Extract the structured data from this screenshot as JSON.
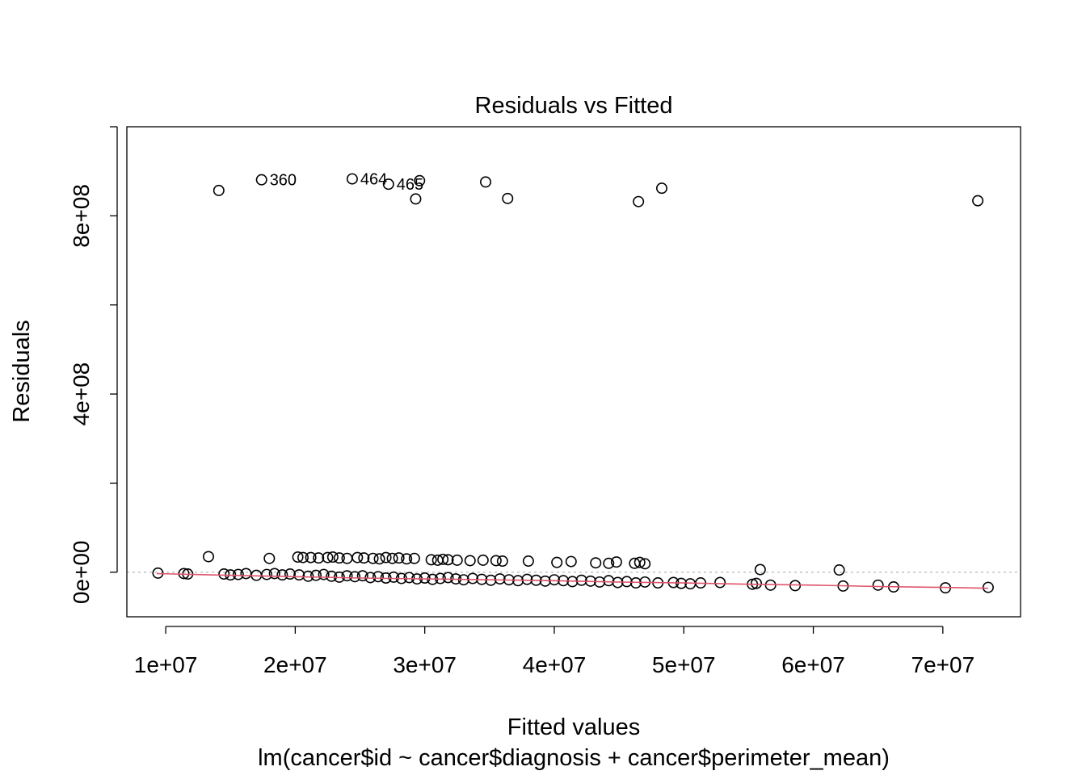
{
  "chart_data": {
    "type": "scatter",
    "title": "Residuals vs Fitted",
    "xlabel": "Fitted values",
    "subtitle": "lm(cancer$id ~ cancer$diagnosis + cancer$perimeter_mean)",
    "ylabel": "Residuals",
    "xlim": [
      7000000,
      76000000
    ],
    "ylim": [
      -100000000,
      1000000000
    ],
    "x_ticks": [
      {
        "value": 10000000,
        "label": "1e+07"
      },
      {
        "value": 20000000,
        "label": "2e+07"
      },
      {
        "value": 30000000,
        "label": "3e+07"
      },
      {
        "value": 40000000,
        "label": "4e+07"
      },
      {
        "value": 50000000,
        "label": "5e+07"
      },
      {
        "value": 60000000,
        "label": "6e+07"
      },
      {
        "value": 70000000,
        "label": "7e+07"
      }
    ],
    "y_ticks": [
      {
        "value": 0,
        "label": "0e+00"
      },
      {
        "value": 200000000,
        "label": ""
      },
      {
        "value": 400000000,
        "label": "4e+08"
      },
      {
        "value": 600000000,
        "label": ""
      },
      {
        "value": 800000000,
        "label": "8e+08"
      },
      {
        "value": 1000000000,
        "label": ""
      }
    ],
    "reference_line": {
      "y": 0,
      "style": "dotted",
      "color": "#bdbdbd"
    },
    "smooth_color": "#DF536B",
    "smooth_line": [
      [
        9300000,
        -3000000
      ],
      [
        15000000,
        -7000000
      ],
      [
        20000000,
        -10000000
      ],
      [
        25000000,
        -13000000
      ],
      [
        30000000,
        -15000000
      ],
      [
        35000000,
        -17000000
      ],
      [
        40000000,
        -19000000
      ],
      [
        45000000,
        -22000000
      ],
      [
        50000000,
        -24000000
      ],
      [
        55000000,
        -27000000
      ],
      [
        60000000,
        -29000000
      ],
      [
        65000000,
        -32000000
      ],
      [
        70000000,
        -34000000
      ],
      [
        73500000,
        -36000000
      ]
    ],
    "points": [
      [
        14100000,
        857000000
      ],
      [
        17400000,
        881000000
      ],
      [
        24400000,
        883000000
      ],
      [
        27200000,
        871000000
      ],
      [
        29600000,
        879000000
      ],
      [
        29300000,
        838000000
      ],
      [
        34700000,
        876000000
      ],
      [
        36400000,
        839000000
      ],
      [
        46500000,
        832000000
      ],
      [
        48300000,
        862000000
      ],
      [
        72700000,
        834000000
      ],
      [
        13300000,
        35000000
      ],
      [
        18000000,
        31000000
      ],
      [
        20200000,
        34000000
      ],
      [
        20600000,
        33000000
      ],
      [
        21200000,
        33000000
      ],
      [
        21800000,
        32000000
      ],
      [
        22500000,
        33000000
      ],
      [
        22900000,
        34000000
      ],
      [
        23400000,
        32000000
      ],
      [
        24000000,
        31000000
      ],
      [
        24800000,
        33000000
      ],
      [
        25300000,
        32000000
      ],
      [
        26000000,
        31000000
      ],
      [
        26500000,
        30000000
      ],
      [
        27000000,
        33000000
      ],
      [
        27500000,
        31000000
      ],
      [
        28000000,
        32000000
      ],
      [
        28600000,
        30000000
      ],
      [
        29200000,
        31000000
      ],
      [
        30500000,
        28000000
      ],
      [
        31000000,
        27000000
      ],
      [
        31400000,
        29000000
      ],
      [
        31800000,
        28000000
      ],
      [
        32500000,
        27000000
      ],
      [
        33500000,
        26000000
      ],
      [
        34500000,
        27000000
      ],
      [
        35500000,
        26000000
      ],
      [
        36000000,
        25000000
      ],
      [
        38000000,
        25000000
      ],
      [
        40200000,
        22000000
      ],
      [
        41300000,
        24000000
      ],
      [
        43200000,
        21000000
      ],
      [
        44200000,
        20000000
      ],
      [
        44800000,
        23000000
      ],
      [
        46200000,
        20000000
      ],
      [
        46600000,
        22000000
      ],
      [
        47000000,
        19000000
      ],
      [
        55900000,
        6000000
      ],
      [
        62000000,
        5000000
      ],
      [
        9400000,
        -2000000
      ],
      [
        11400000,
        -3000000
      ],
      [
        11700000,
        -4000000
      ],
      [
        14500000,
        -4000000
      ],
      [
        15000000,
        -6000000
      ],
      [
        15600000,
        -5000000
      ],
      [
        16200000,
        -3000000
      ],
      [
        17000000,
        -7000000
      ],
      [
        17800000,
        -5000000
      ],
      [
        18400000,
        -3000000
      ],
      [
        19000000,
        -6000000
      ],
      [
        19600000,
        -4000000
      ],
      [
        20300000,
        -6000000
      ],
      [
        21000000,
        -9000000
      ],
      [
        21600000,
        -7000000
      ],
      [
        22200000,
        -5000000
      ],
      [
        22800000,
        -9000000
      ],
      [
        23400000,
        -11000000
      ],
      [
        24000000,
        -8000000
      ],
      [
        24600000,
        -10000000
      ],
      [
        25200000,
        -8000000
      ],
      [
        25800000,
        -12000000
      ],
      [
        26400000,
        -10000000
      ],
      [
        27000000,
        -13000000
      ],
      [
        27600000,
        -11000000
      ],
      [
        28200000,
        -14000000
      ],
      [
        28800000,
        -12000000
      ],
      [
        29400000,
        -15000000
      ],
      [
        30000000,
        -13000000
      ],
      [
        30600000,
        -16000000
      ],
      [
        31200000,
        -14000000
      ],
      [
        31800000,
        -12000000
      ],
      [
        32400000,
        -15000000
      ],
      [
        33000000,
        -17000000
      ],
      [
        33700000,
        -14000000
      ],
      [
        34400000,
        -16000000
      ],
      [
        35100000,
        -18000000
      ],
      [
        35800000,
        -15000000
      ],
      [
        36500000,
        -17000000
      ],
      [
        37200000,
        -19000000
      ],
      [
        37900000,
        -16000000
      ],
      [
        38600000,
        -18000000
      ],
      [
        39300000,
        -20000000
      ],
      [
        40000000,
        -17000000
      ],
      [
        40700000,
        -19000000
      ],
      [
        41400000,
        -21000000
      ],
      [
        42100000,
        -18000000
      ],
      [
        42800000,
        -20000000
      ],
      [
        43500000,
        -22000000
      ],
      [
        44200000,
        -19000000
      ],
      [
        44900000,
        -23000000
      ],
      [
        45600000,
        -21000000
      ],
      [
        46300000,
        -24000000
      ],
      [
        47000000,
        -22000000
      ],
      [
        48000000,
        -24000000
      ],
      [
        49200000,
        -23000000
      ],
      [
        49800000,
        -25000000
      ],
      [
        50500000,
        -26000000
      ],
      [
        51300000,
        -24000000
      ],
      [
        52800000,
        -23000000
      ],
      [
        55300000,
        -27000000
      ],
      [
        55600000,
        -25000000
      ],
      [
        56700000,
        -29000000
      ],
      [
        58600000,
        -30000000
      ],
      [
        62300000,
        -31000000
      ],
      [
        65000000,
        -29000000
      ],
      [
        66200000,
        -33000000
      ],
      [
        70200000,
        -35000000
      ],
      [
        73500000,
        -34000000
      ]
    ],
    "labeled_points": [
      {
        "label": "360",
        "x": 17400000,
        "y": 881000000
      },
      {
        "label": "464",
        "x": 24400000,
        "y": 883000000
      },
      {
        "label": "465",
        "x": 27200000,
        "y": 871000000
      }
    ]
  }
}
